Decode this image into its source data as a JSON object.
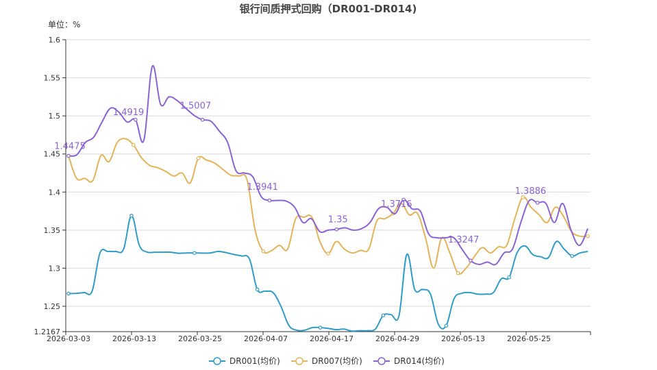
{
  "chart_data": {
    "type": "line",
    "title": "银行间质押式回购（DR001-DR014)",
    "unit_label": "单位：%",
    "ylim": [
      1.2167,
      1.6
    ],
    "y_ticks": [
      "1.2167",
      "1.25",
      "1.3",
      "1.35",
      "1.4",
      "1.45",
      "1.5",
      "1.55",
      "1.6"
    ],
    "x_ticks": [
      "2026-03-03",
      "2026-03-13",
      "2026-03-25",
      "2026-04-07",
      "2026-04-17",
      "2026-04-29",
      "2026-05-13",
      "2026-05-25"
    ],
    "grid": true,
    "legend_position": "bottom",
    "series": [
      {
        "name": "DR001(均价)",
        "color": "#2f9bc6",
        "values": [
          1.2667,
          1.267,
          1.268,
          1.27,
          1.32,
          1.322,
          1.322,
          1.325,
          1.369,
          1.33,
          1.3212,
          1.321,
          1.321,
          1.321,
          1.3196,
          1.32,
          1.32,
          1.3198,
          1.32,
          1.322,
          1.3205,
          1.318,
          1.316,
          1.312,
          1.272,
          1.27,
          1.268,
          1.25,
          1.225,
          1.2186,
          1.2186,
          1.222,
          1.222,
          1.221,
          1.2193,
          1.22,
          1.2175,
          1.218,
          1.218,
          1.22,
          1.238,
          1.239,
          1.2375,
          1.318,
          1.272,
          1.272,
          1.266,
          1.2265,
          1.2245,
          1.26,
          1.2671,
          1.268,
          1.266,
          1.266,
          1.268,
          1.286,
          1.288,
          1.32,
          1.3293,
          1.318,
          1.315,
          1.314,
          1.335,
          1.325,
          1.316,
          1.32,
          1.322
        ],
        "labels": []
      },
      {
        "name": "DR007(均价)",
        "color": "#e3b35a",
        "values": [
          1.4475,
          1.418,
          1.418,
          1.415,
          1.448,
          1.44,
          1.465,
          1.47,
          1.4619,
          1.445,
          1.435,
          1.432,
          1.427,
          1.421,
          1.425,
          1.412,
          1.4444,
          1.442,
          1.438,
          1.43,
          1.422,
          1.421,
          1.416,
          1.35,
          1.3222,
          1.323,
          1.33,
          1.325,
          1.365,
          1.367,
          1.367,
          1.3345,
          1.3192,
          1.335,
          1.325,
          1.32,
          1.3234,
          1.325,
          1.362,
          1.365,
          1.3718,
          1.385,
          1.37,
          1.372,
          1.34,
          1.3,
          1.34,
          1.32,
          1.2935,
          1.3,
          1.315,
          1.327,
          1.32,
          1.328,
          1.33,
          1.365,
          1.3932,
          1.38,
          1.37,
          1.36,
          1.38,
          1.368,
          1.348,
          1.342,
          1.342
        ],
        "labels": []
      },
      {
        "name": "DR014(均价)",
        "color": "#8a63d2",
        "values": [
          1.4475,
          1.449,
          1.465,
          1.472,
          1.492,
          1.51,
          1.505,
          1.4919,
          1.495,
          1.468,
          1.565,
          1.515,
          1.525,
          1.52,
          1.51,
          1.5007,
          1.495,
          1.493,
          1.48,
          1.465,
          1.428,
          1.425,
          1.42,
          1.3941,
          1.389,
          1.389,
          1.388,
          1.38,
          1.36,
          1.365,
          1.348,
          1.35,
          1.351,
          1.353,
          1.35,
          1.352,
          1.36,
          1.378,
          1.38,
          1.3716,
          1.39,
          1.378,
          1.375,
          1.345,
          1.34,
          1.34,
          1.34,
          1.3247,
          1.31,
          1.305,
          1.308,
          1.305,
          1.32,
          1.325,
          1.36,
          1.3886,
          1.386,
          1.385,
          1.36,
          1.385,
          1.35,
          1.33,
          1.352
        ],
        "labels": [
          {
            "index": 0,
            "text": "1.4475"
          },
          {
            "index": 7,
            "text": "1.4919"
          },
          {
            "index": 15,
            "text": "1.5007"
          },
          {
            "index": 23,
            "text": "1.3941"
          },
          {
            "index": 32,
            "text": "1.35"
          },
          {
            "index": 39,
            "text": "1.3716"
          },
          {
            "index": 47,
            "text": "1.3247"
          },
          {
            "index": 55,
            "text": "1.3886"
          }
        ]
      }
    ]
  }
}
